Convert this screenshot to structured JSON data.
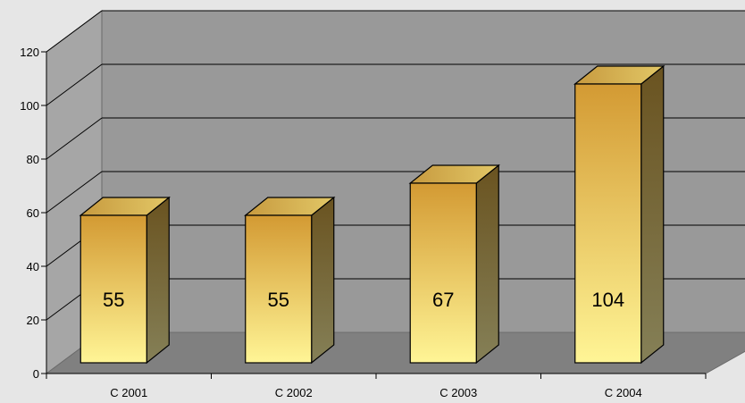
{
  "chart_data": {
    "type": "bar",
    "title": "",
    "xlabel": "",
    "ylabel": "",
    "categories": [
      "C 2001",
      "C 2002",
      "C 2003",
      "C 2004"
    ],
    "values": [
      55,
      55,
      67,
      104
    ],
    "ylim": [
      0,
      120
    ],
    "yticks": [
      "0",
      "20",
      "40",
      "60",
      "80",
      "100",
      "120"
    ],
    "grid": true,
    "legend": "none",
    "style": "3d-column"
  },
  "colors": {
    "background": "#e6e6e6",
    "back_wall": "#999999",
    "side_wall": "#a6a6a6",
    "floor": "#808080",
    "bar_top": "#d39a33",
    "bar_bottom": "#fff596",
    "bar_side": "#77662c",
    "bar_cap": "#d2b04e",
    "gridline": "#000000"
  }
}
